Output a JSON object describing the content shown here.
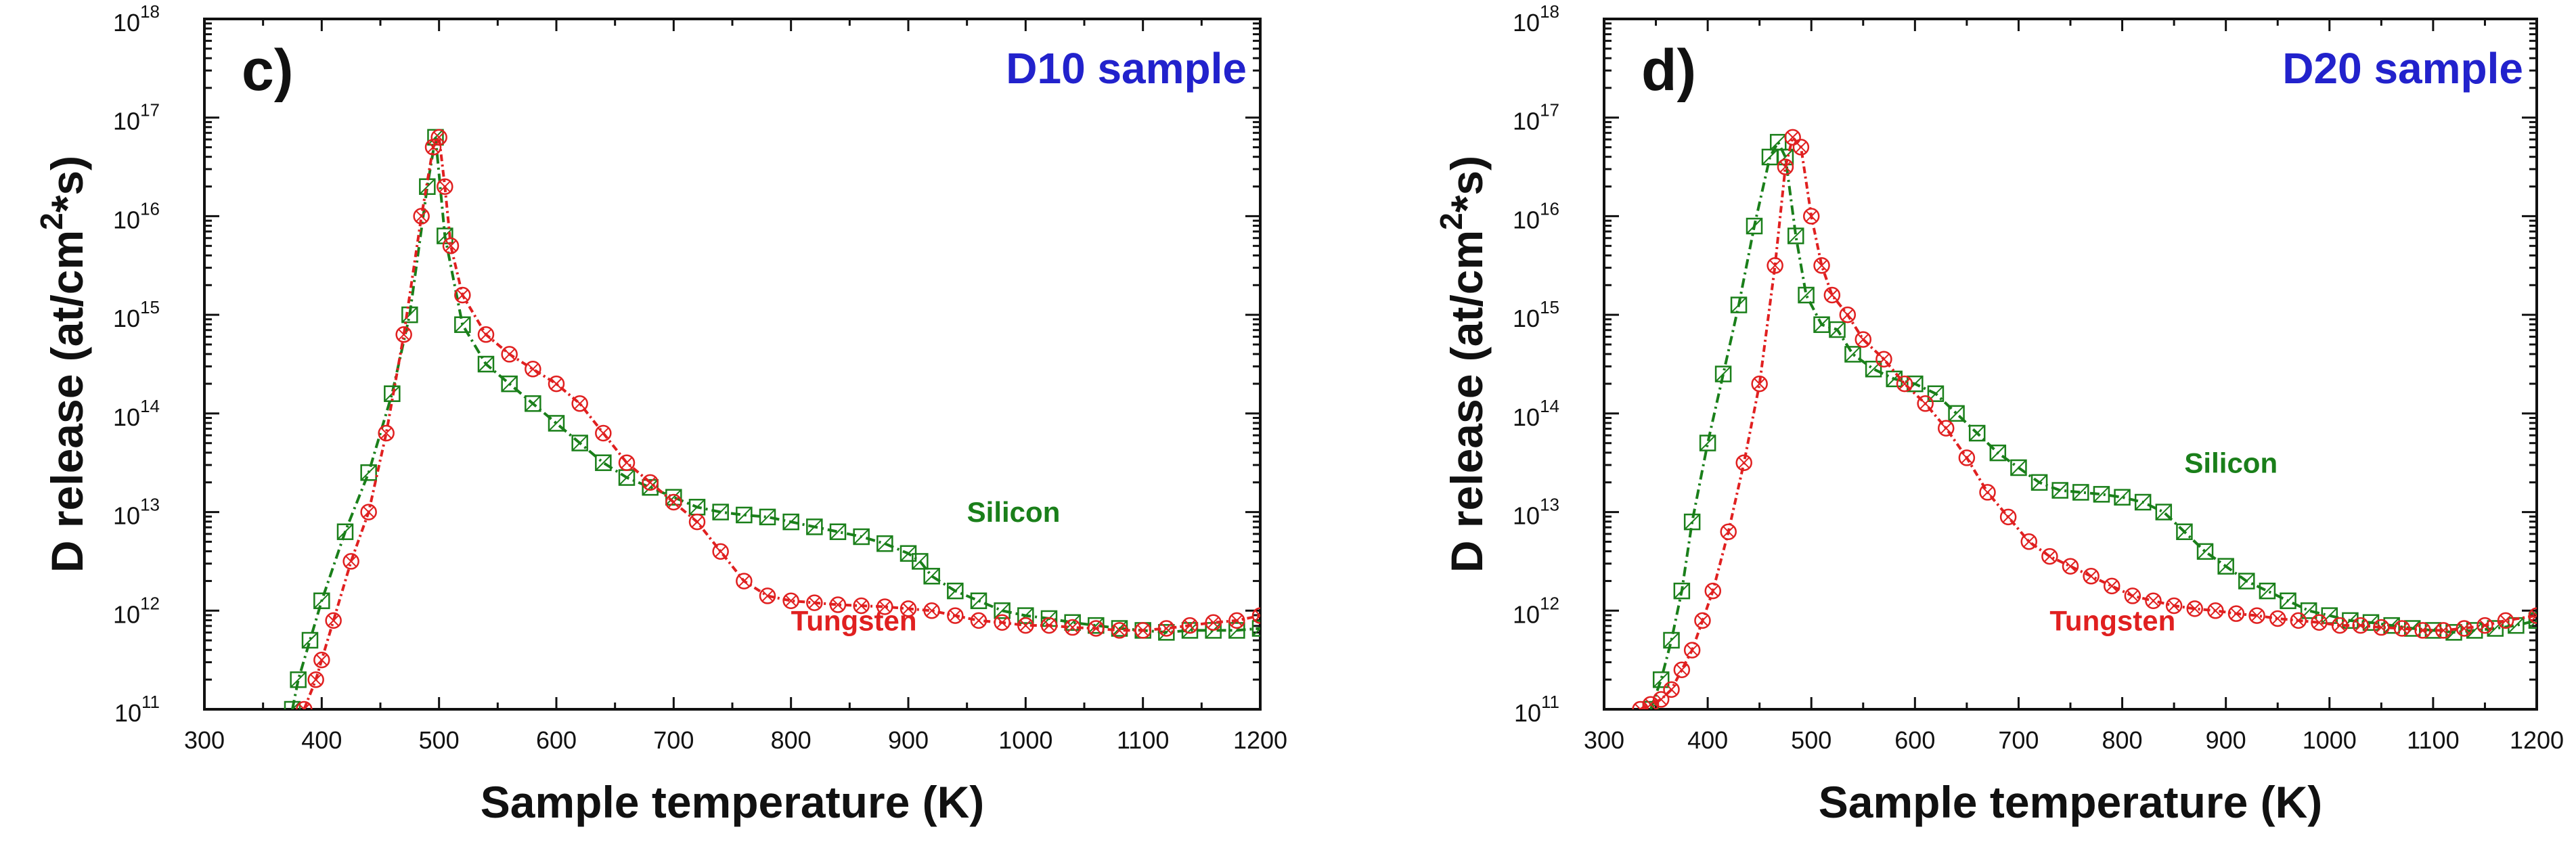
{
  "chart_data": [
    {
      "type": "line",
      "panel_label": "c)",
      "title": "D10 sample",
      "xlabel": "Sample temperature (K)",
      "ylabel": "D release (at/cm",
      "ylabel_sup": "2",
      "ylabel_end": "*s)",
      "xlim": [
        300,
        1200
      ],
      "ylim_exponents": [
        11,
        18
      ],
      "yscale": "log",
      "x_ticks": [
        "300",
        "400",
        "500",
        "600",
        "700",
        "800",
        "900",
        "1000",
        "1100",
        "1200"
      ],
      "y_ticks": [
        {
          "base": "10",
          "exp": "11"
        },
        {
          "base": "10",
          "exp": "12"
        },
        {
          "base": "10",
          "exp": "13"
        },
        {
          "base": "10",
          "exp": "14"
        },
        {
          "base": "10",
          "exp": "15"
        },
        {
          "base": "10",
          "exp": "16"
        },
        {
          "base": "10",
          "exp": "17"
        },
        {
          "base": "10",
          "exp": "18"
        }
      ],
      "series": [
        {
          "name": "Silicon",
          "color": "#1a7f1a",
          "label_x": 950,
          "label_logy": 12.9,
          "x": [
            375,
            380,
            390,
            400,
            420,
            440,
            460,
            475,
            490,
            497,
            505,
            520,
            540,
            560,
            580,
            600,
            620,
            640,
            660,
            680,
            700,
            720,
            740,
            760,
            780,
            800,
            820,
            840,
            860,
            880,
            900,
            910,
            920,
            940,
            960,
            980,
            1000,
            1020,
            1040,
            1060,
            1080,
            1100,
            1120,
            1140,
            1160,
            1180,
            1200
          ],
          "logy": [
            11.0,
            11.3,
            11.7,
            12.1,
            12.8,
            13.4,
            14.2,
            15.0,
            16.3,
            16.8,
            15.8,
            14.9,
            14.5,
            14.3,
            14.1,
            13.9,
            13.7,
            13.5,
            13.35,
            13.25,
            13.15,
            13.05,
            13.0,
            12.97,
            12.95,
            12.9,
            12.85,
            12.8,
            12.75,
            12.68,
            12.58,
            12.5,
            12.35,
            12.2,
            12.1,
            12.0,
            11.95,
            11.92,
            11.88,
            11.85,
            11.82,
            11.8,
            11.78,
            11.8,
            11.8,
            11.8,
            11.82
          ]
        },
        {
          "name": "Tungsten",
          "color": "#e02020",
          "label_x": 800,
          "label_logy": 11.8,
          "x": [
            385,
            395,
            400,
            410,
            425,
            440,
            455,
            470,
            485,
            495,
            500,
            505,
            510,
            520,
            540,
            560,
            580,
            600,
            620,
            640,
            660,
            680,
            700,
            720,
            740,
            760,
            780,
            800,
            820,
            840,
            860,
            880,
            900,
            920,
            940,
            960,
            980,
            1000,
            1020,
            1040,
            1060,
            1080,
            1100,
            1120,
            1140,
            1160,
            1180,
            1200
          ],
          "logy": [
            11.0,
            11.3,
            11.5,
            11.9,
            12.5,
            13.0,
            13.8,
            14.8,
            16.0,
            16.7,
            16.8,
            16.3,
            15.7,
            15.2,
            14.8,
            14.6,
            14.45,
            14.3,
            14.1,
            13.8,
            13.5,
            13.3,
            13.1,
            12.9,
            12.6,
            12.3,
            12.15,
            12.1,
            12.08,
            12.06,
            12.05,
            12.04,
            12.02,
            12.0,
            11.95,
            11.9,
            11.88,
            11.85,
            11.85,
            11.83,
            11.82,
            11.8,
            11.8,
            11.82,
            11.85,
            11.88,
            11.9,
            11.95
          ]
        }
      ]
    },
    {
      "type": "line",
      "panel_label": "d)",
      "title": "D20 sample",
      "xlabel": "Sample temperature (K)",
      "ylabel": "D release (at/cm",
      "ylabel_sup": "2",
      "ylabel_end": "*s)",
      "xlim": [
        300,
        1200
      ],
      "ylim_exponents": [
        11,
        18
      ],
      "yscale": "log",
      "x_ticks": [
        "300",
        "400",
        "500",
        "600",
        "700",
        "800",
        "900",
        "1000",
        "1100",
        "1200"
      ],
      "y_ticks": [
        {
          "base": "10",
          "exp": "11"
        },
        {
          "base": "10",
          "exp": "12"
        },
        {
          "base": "10",
          "exp": "13"
        },
        {
          "base": "10",
          "exp": "14"
        },
        {
          "base": "10",
          "exp": "15"
        },
        {
          "base": "10",
          "exp": "16"
        },
        {
          "base": "10",
          "exp": "17"
        },
        {
          "base": "10",
          "exp": "18"
        }
      ],
      "series": [
        {
          "name": "Silicon",
          "color": "#1a7f1a",
          "label_x": 860,
          "label_logy": 13.4,
          "x": [
            345,
            355,
            365,
            375,
            385,
            400,
            415,
            430,
            445,
            460,
            468,
            475,
            485,
            495,
            510,
            525,
            540,
            560,
            580,
            600,
            620,
            640,
            660,
            680,
            700,
            720,
            740,
            760,
            780,
            800,
            820,
            840,
            860,
            880,
            900,
            920,
            940,
            960,
            980,
            1000,
            1020,
            1040,
            1060,
            1080,
            1100,
            1120,
            1140,
            1160,
            1180,
            1200
          ],
          "logy": [
            11.0,
            11.3,
            11.7,
            12.2,
            12.9,
            13.7,
            14.4,
            15.1,
            15.9,
            16.6,
            16.75,
            16.6,
            15.8,
            15.2,
            14.9,
            14.85,
            14.6,
            14.45,
            14.35,
            14.3,
            14.2,
            14.0,
            13.8,
            13.6,
            13.45,
            13.3,
            13.22,
            13.2,
            13.18,
            13.15,
            13.1,
            13.0,
            12.8,
            12.6,
            12.45,
            12.3,
            12.2,
            12.1,
            12.0,
            11.95,
            11.9,
            11.88,
            11.85,
            11.82,
            11.8,
            11.78,
            11.8,
            11.82,
            11.85,
            11.9
          ]
        },
        {
          "name": "Tungsten",
          "color": "#e02020",
          "label_x": 730,
          "label_logy": 11.8,
          "x": [
            335,
            345,
            355,
            365,
            375,
            385,
            395,
            405,
            420,
            435,
            450,
            465,
            475,
            482,
            490,
            500,
            510,
            520,
            535,
            550,
            570,
            590,
            610,
            630,
            650,
            670,
            690,
            710,
            730,
            750,
            770,
            790,
            810,
            830,
            850,
            870,
            890,
            910,
            930,
            950,
            970,
            990,
            1010,
            1030,
            1050,
            1070,
            1090,
            1110,
            1130,
            1150,
            1170,
            1200
          ],
          "logy": [
            11.0,
            11.05,
            11.1,
            11.2,
            11.4,
            11.6,
            11.9,
            12.2,
            12.8,
            13.5,
            14.3,
            15.5,
            16.5,
            16.8,
            16.7,
            16.0,
            15.5,
            15.2,
            15.0,
            14.75,
            14.55,
            14.3,
            14.1,
            13.85,
            13.55,
            13.2,
            12.95,
            12.7,
            12.55,
            12.45,
            12.35,
            12.25,
            12.15,
            12.1,
            12.05,
            12.02,
            12.0,
            11.97,
            11.95,
            11.92,
            11.9,
            11.88,
            11.85,
            11.85,
            11.83,
            11.82,
            11.8,
            11.8,
            11.82,
            11.85,
            11.9,
            11.95
          ]
        }
      ]
    }
  ]
}
